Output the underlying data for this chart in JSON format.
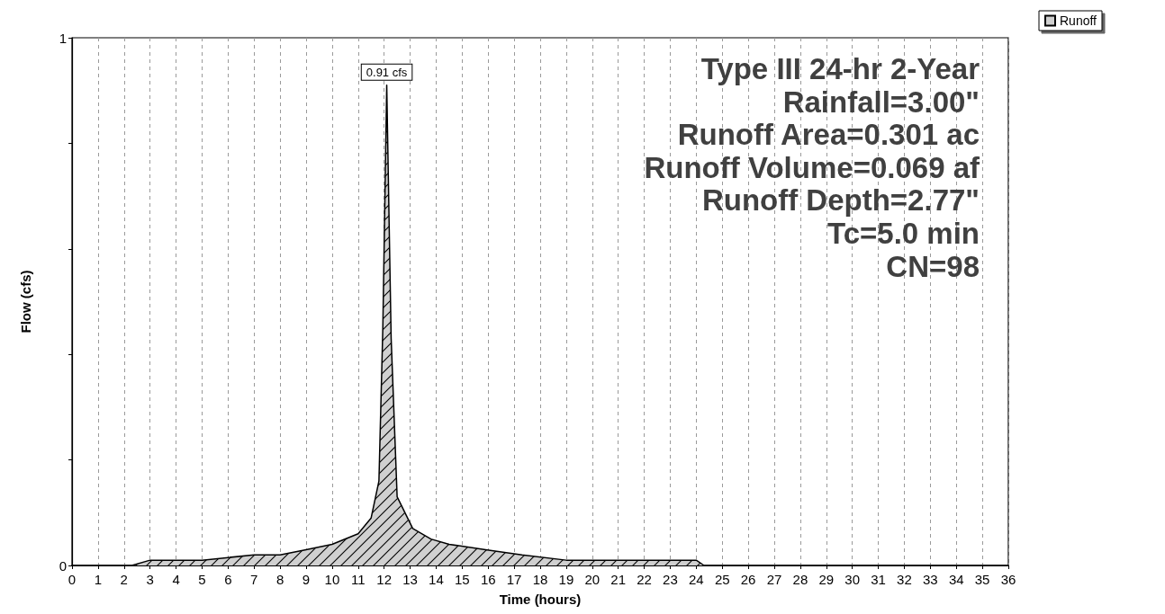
{
  "chart_data": {
    "type": "area",
    "xlabel": "Time (hours)",
    "ylabel": "Flow (cfs)",
    "x": [
      0,
      2.3,
      3,
      5,
      7,
      8,
      9,
      10,
      11,
      11.5,
      11.8,
      11.95,
      12.1,
      12.27,
      12.5,
      13.1,
      13.8,
      14.5,
      15.9,
      17.3,
      19,
      24,
      24.3,
      36
    ],
    "series": [
      {
        "name": "Runoff",
        "color": "#d0d0d0",
        "values": [
          0,
          0,
          0.01,
          0.01,
          0.02,
          0.02,
          0.03,
          0.04,
          0.06,
          0.09,
          0.16,
          0.45,
          0.91,
          0.43,
          0.13,
          0.07,
          0.05,
          0.04,
          0.03,
          0.02,
          0.01,
          0.01,
          0,
          0
        ]
      }
    ],
    "xlim": [
      0,
      36
    ],
    "xticks": [
      0,
      1,
      2,
      3,
      4,
      5,
      6,
      7,
      8,
      9,
      10,
      11,
      12,
      13,
      14,
      15,
      16,
      17,
      18,
      19,
      20,
      21,
      22,
      23,
      24,
      25,
      26,
      27,
      28,
      29,
      30,
      31,
      32,
      33,
      34,
      35,
      36
    ],
    "ylim": [
      0,
      1
    ],
    "yticks": [
      0,
      {
        "value": 0.2,
        "label": null
      },
      {
        "value": 0.4,
        "label": null
      },
      {
        "value": 0.6,
        "label": null
      },
      {
        "value": 0.8,
        "label": null
      },
      1
    ],
    "grid": "x",
    "legend": "top right",
    "annotations": [
      "Type III 24-hr 2-Year",
      "Rainfall=3.00\"",
      "Runoff Area=0.301 ac",
      "Runoff Volume=0.069 af",
      "Runoff Depth=2.77\"",
      "Tc=5.0 min",
      "CN=98",
      {
        "text": "0.91 cfs",
        "x": 12.1,
        "y": 0.91
      }
    ]
  }
}
